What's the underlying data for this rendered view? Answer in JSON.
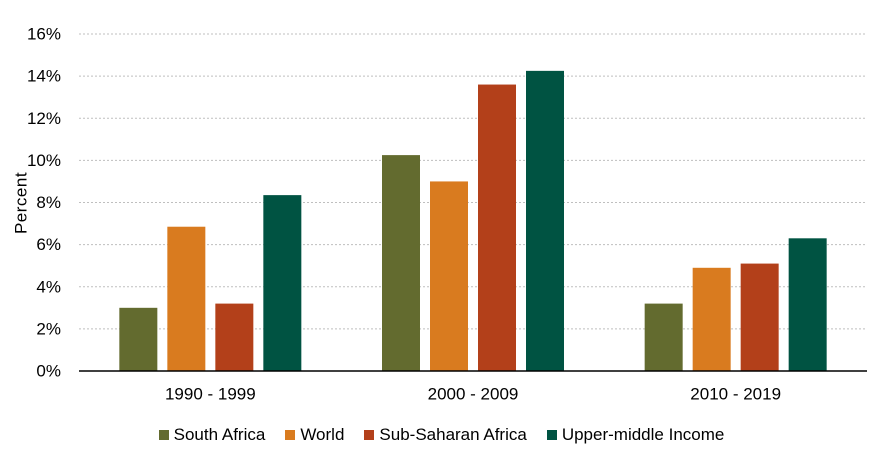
{
  "chart_data": {
    "type": "bar",
    "title": "",
    "xlabel": "",
    "ylabel": "Percent",
    "ylim": [
      0,
      16
    ],
    "yticks": [
      0,
      2,
      4,
      6,
      8,
      10,
      12,
      14,
      16
    ],
    "ytick_labels": [
      "0%",
      "2%",
      "4%",
      "6%",
      "8%",
      "10%",
      "12%",
      "14%",
      "16%"
    ],
    "grid": true,
    "legend_position": "bottom",
    "categories": [
      "1990 - 1999",
      "2000 - 2009",
      "2010 - 2019"
    ],
    "series": [
      {
        "name": "South Africa",
        "color": "#636B2F",
        "values": [
          3.0,
          10.25,
          3.2
        ]
      },
      {
        "name": "World",
        "color": "#D97B1F",
        "values": [
          6.85,
          9.0,
          4.9
        ]
      },
      {
        "name": "Sub-Saharan Africa",
        "color": "#B3401A",
        "values": [
          3.2,
          13.6,
          5.1
        ]
      },
      {
        "name": "Upper-middle Income",
        "color": "#005342",
        "values": [
          8.35,
          14.25,
          6.3
        ]
      }
    ]
  }
}
